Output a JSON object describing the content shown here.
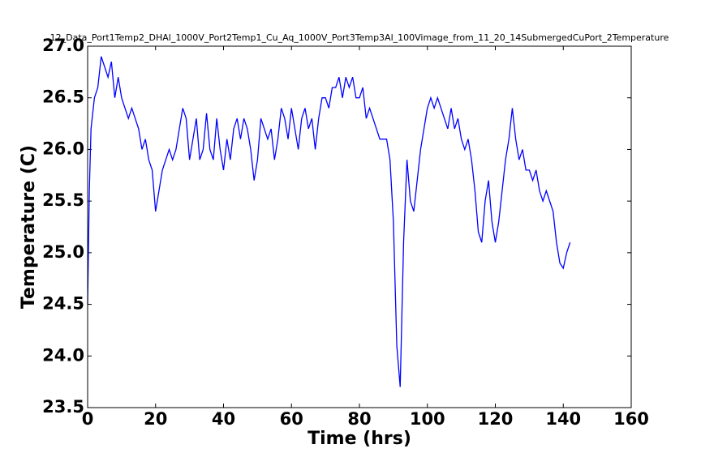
{
  "chart_data": {
    "type": "line",
    "title": "12_Data_Port1Temp2_DHAl_1000V_Port2Temp1_Cu_Aq_1000V_Port3Temp3Al_100Vimage_from_11_20_14SubmergedCuPort_2Temperature",
    "x_label": "Time (hrs)",
    "y_label": "Temperature (C)",
    "xlim": [
      0,
      160
    ],
    "xticks": [
      0,
      20,
      40,
      60,
      80,
      100,
      120,
      140,
      160
    ],
    "ylim": [
      23.5,
      27.0
    ],
    "yticks": [
      23.5,
      {
        "value": 24.0,
        "label": "24.0"
      },
      24.5,
      {
        "value": 25.0,
        "label": "25.0"
      },
      25.5,
      {
        "value": 26.0,
        "label": "26.0"
      },
      26.5,
      {
        "value": 27.0,
        "label": "27.0"
      }
    ],
    "series": [
      {
        "color": "#0000ff",
        "x": [
          0,
          0.5,
          1,
          2,
          3,
          4,
          5,
          6,
          7,
          8,
          9,
          10,
          11,
          12,
          13,
          14,
          15,
          16,
          17,
          18,
          19,
          20,
          21,
          22,
          23,
          24,
          25,
          26,
          27,
          28,
          29,
          30,
          31,
          32,
          33,
          34,
          35,
          36,
          37,
          38,
          39,
          40,
          41,
          42,
          43,
          44,
          45,
          46,
          47,
          48,
          49,
          50,
          51,
          52,
          53,
          54,
          55,
          56,
          57,
          58,
          59,
          60,
          61,
          62,
          63,
          64,
          65,
          66,
          67,
          68,
          69,
          70,
          71,
          72,
          73,
          74,
          75,
          76,
          77,
          78,
          79,
          80,
          81,
          82,
          83,
          84,
          85,
          86,
          87,
          88,
          89,
          90,
          91,
          92,
          93,
          94,
          95,
          96,
          97,
          98,
          99,
          100,
          101,
          102,
          103,
          104,
          105,
          106,
          107,
          108,
          109,
          110,
          111,
          112,
          113,
          114,
          115,
          116,
          117,
          118,
          119,
          120,
          121,
          122,
          123,
          124,
          125,
          126,
          127,
          128,
          129,
          130,
          131,
          132,
          133,
          134,
          135,
          136,
          137,
          138,
          139,
          140,
          141,
          142
        ],
        "values": [
          24.5,
          25.6,
          26.2,
          26.5,
          26.6,
          26.9,
          26.8,
          26.7,
          26.85,
          26.5,
          26.7,
          26.5,
          26.4,
          26.3,
          26.4,
          26.3,
          26.2,
          26.0,
          26.1,
          25.9,
          25.8,
          25.4,
          25.6,
          25.8,
          25.9,
          26.0,
          25.9,
          26.0,
          26.2,
          26.4,
          26.3,
          25.9,
          26.1,
          26.3,
          25.9,
          26.0,
          26.35,
          26.0,
          25.9,
          26.3,
          26.0,
          25.8,
          26.1,
          25.9,
          26.2,
          26.3,
          26.1,
          26.3,
          26.2,
          26.0,
          25.7,
          25.9,
          26.3,
          26.2,
          26.1,
          26.2,
          25.9,
          26.1,
          26.4,
          26.3,
          26.1,
          26.4,
          26.2,
          26.0,
          26.3,
          26.4,
          26.2,
          26.3,
          26.0,
          26.3,
          26.5,
          26.5,
          26.4,
          26.6,
          26.6,
          26.7,
          26.5,
          26.7,
          26.6,
          26.7,
          26.5,
          26.5,
          26.6,
          26.3,
          26.4,
          26.3,
          26.2,
          26.1,
          26.1,
          26.1,
          25.9,
          25.3,
          24.1,
          23.7,
          25.1,
          25.9,
          25.5,
          25.4,
          25.7,
          26.0,
          26.2,
          26.4,
          26.5,
          26.4,
          26.5,
          26.4,
          26.3,
          26.2,
          26.4,
          26.2,
          26.3,
          26.1,
          26.0,
          26.1,
          25.9,
          25.6,
          25.2,
          25.1,
          25.5,
          25.7,
          25.3,
          25.1,
          25.3,
          25.6,
          25.9,
          26.1,
          26.4,
          26.1,
          25.9,
          26.0,
          25.8,
          25.8,
          25.7,
          25.8,
          25.6,
          25.5,
          25.6,
          25.5,
          25.4,
          25.1,
          24.9,
          24.85,
          25.0,
          25.1
        ]
      }
    ]
  }
}
